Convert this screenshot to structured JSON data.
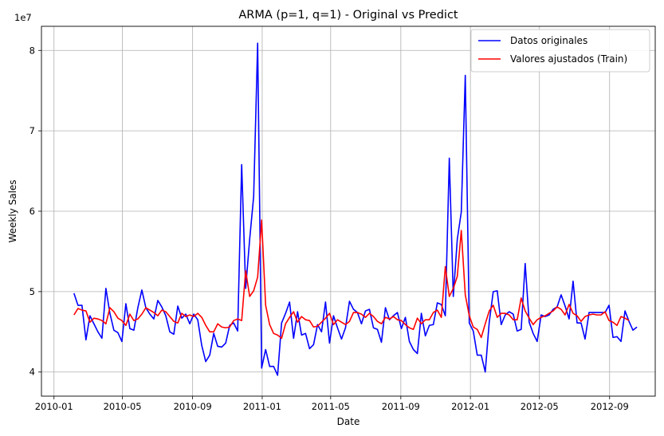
{
  "chart_data": {
    "type": "line",
    "title": "ARMA (p=1, q=1) - Original vs Predict",
    "xlabel": "Date",
    "ylabel": "Weekly Sales",
    "y_offset_label": "1e7",
    "y_scale_factor": 10000000,
    "grid": true,
    "legend_position": "top-right",
    "x_range": [
      "2009-12-10",
      "2012-11-20"
    ],
    "y_range": [
      37000000,
      83000000
    ],
    "x_ticks": [
      {
        "date": "2010-01-01",
        "label": "2010-01"
      },
      {
        "date": "2010-05-01",
        "label": "2010-05"
      },
      {
        "date": "2010-09-01",
        "label": "2010-09"
      },
      {
        "date": "2011-01-01",
        "label": "2011-01"
      },
      {
        "date": "2011-05-01",
        "label": "2011-05"
      },
      {
        "date": "2011-09-01",
        "label": "2011-09"
      },
      {
        "date": "2012-01-01",
        "label": "2012-01"
      },
      {
        "date": "2012-05-01",
        "label": "2012-05"
      },
      {
        "date": "2012-09-01",
        "label": "2012-09"
      }
    ],
    "y_ticks": [
      {
        "value": 40000000,
        "label": "4"
      },
      {
        "value": 50000000,
        "label": "5"
      },
      {
        "value": 60000000,
        "label": "6"
      },
      {
        "value": 70000000,
        "label": "7"
      },
      {
        "value": 80000000,
        "label": "8"
      }
    ],
    "start_date": "2010-02-05",
    "step_days": 7,
    "series": [
      {
        "name": "Datos originales",
        "color": "#0000ff",
        "values": [
          49.8,
          48.3,
          48.3,
          44.0,
          47.0,
          46.0,
          45.0,
          44.2,
          50.4,
          47.3,
          45.2,
          44.9,
          43.8,
          48.5,
          45.4,
          45.2,
          48.0,
          50.2,
          48.0,
          47.2,
          46.6,
          48.9,
          48.1,
          47.0,
          45.0,
          44.7,
          48.2,
          46.7,
          47.2,
          46.0,
          47.2,
          46.5,
          43.3,
          41.3,
          42.1,
          44.8,
          43.2,
          43.1,
          43.6,
          45.8,
          46.1,
          45.1,
          65.8,
          50.4,
          56.5,
          61.8,
          80.9,
          40.5,
          42.8,
          40.7,
          40.7,
          39.6,
          46.1,
          47.3,
          48.7,
          44.2,
          47.5,
          44.6,
          44.8,
          42.9,
          43.4,
          45.9,
          45.0,
          48.7,
          43.6,
          47.0,
          45.5,
          44.1,
          45.5,
          48.8,
          47.8,
          47.4,
          46.0,
          47.6,
          47.8,
          45.5,
          45.3,
          43.7,
          48.0,
          46.5,
          47.0,
          47.4,
          45.4,
          46.8,
          43.8,
          42.8,
          42.3,
          47.3,
          44.5,
          45.8,
          45.9,
          48.6,
          48.4,
          47.0,
          66.6,
          49.4,
          56.5,
          59.9,
          76.9,
          46.1,
          45.1,
          42.1,
          42.1,
          40.0,
          46.2,
          50.0,
          50.1,
          45.9,
          47.1,
          47.5,
          47.2,
          45.1,
          45.3,
          53.5,
          46.2,
          44.8,
          43.8,
          47.1,
          46.9,
          47.1,
          47.8,
          48.1,
          49.6,
          48.2,
          46.6,
          51.3,
          46.1,
          46.1,
          44.1,
          47.4,
          47.4,
          47.4,
          47.4,
          47.4,
          48.3,
          44.3,
          44.4,
          43.8,
          47.6,
          46.3,
          45.2,
          45.6
        ]
      },
      {
        "name": "Valores ajustados (Train)",
        "color": "#ff0000",
        "values": [
          47.1,
          47.9,
          47.7,
          47.6,
          46.2,
          46.7,
          46.6,
          46.4,
          46.0,
          48.0,
          47.5,
          46.7,
          46.4,
          45.8,
          47.2,
          46.4,
          46.6,
          47.2,
          48.0,
          47.7,
          47.4,
          47.0,
          47.7,
          47.5,
          46.9,
          46.3,
          46.1,
          47.3,
          46.9,
          47.1,
          46.9,
          47.3,
          46.8,
          45.8,
          45.0,
          45.0,
          46.0,
          45.6,
          45.5,
          45.6,
          46.4,
          46.6,
          46.4,
          52.6,
          49.4,
          50.1,
          51.8,
          58.9,
          48.3,
          45.9,
          44.8,
          44.6,
          44.2,
          46.0,
          46.8,
          47.5,
          46.2,
          46.9,
          46.5,
          46.4,
          45.6,
          45.7,
          46.2,
          46.7,
          47.3,
          45.9,
          46.5,
          46.2,
          45.9,
          46.3,
          47.4,
          47.4,
          47.2,
          46.8,
          47.3,
          46.9,
          46.3,
          46.0,
          46.8,
          46.6,
          46.9,
          46.5,
          46.4,
          45.9,
          45.5,
          45.3,
          46.7,
          46.0,
          46.5,
          46.5,
          47.4,
          47.7,
          46.8,
          53.1,
          49.4,
          50.4,
          51.9,
          57.6,
          49.6,
          47.0,
          45.6,
          45.3,
          44.3,
          46.0,
          47.6,
          48.3,
          46.8,
          47.3,
          47.3,
          47.1,
          46.5,
          46.5,
          49.2,
          47.6,
          46.7,
          45.9,
          46.5,
          46.8,
          47.0,
          47.3,
          47.6,
          48.1,
          47.8,
          47.1,
          48.4,
          47.3,
          47.0,
          46.3,
          46.9,
          47.1,
          47.2,
          47.1,
          47.1,
          47.5,
          46.4,
          46.2,
          45.8,
          46.9,
          46.7,
          46.4
        ]
      }
    ]
  }
}
